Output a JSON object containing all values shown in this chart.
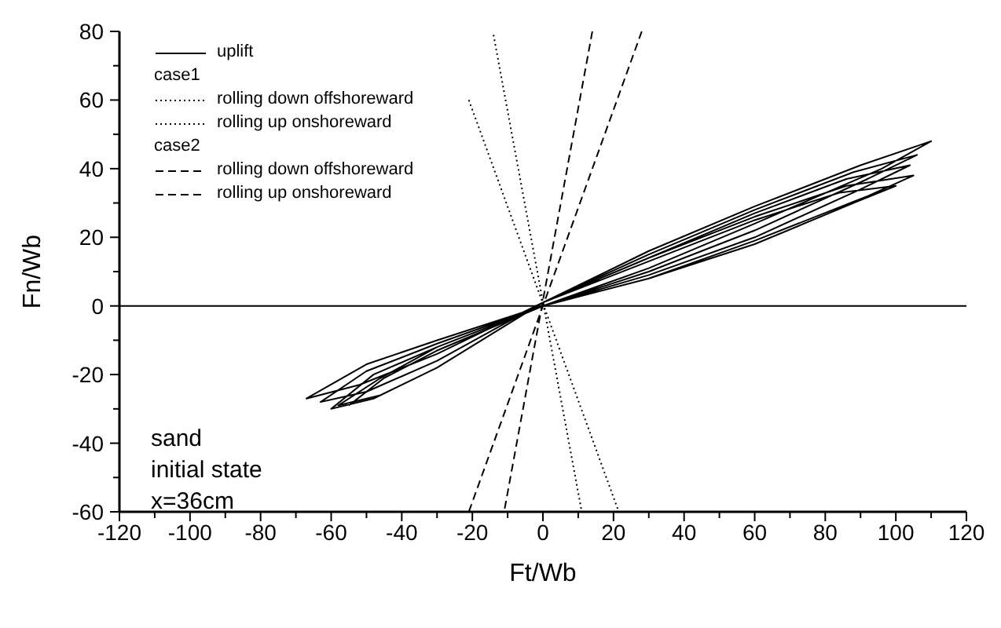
{
  "chart_data": {
    "type": "line",
    "xlabel": "Ft/Wb",
    "ylabel": "Fn/Wb",
    "xlim": [
      -120,
      120
    ],
    "ylim": [
      -60,
      80
    ],
    "xticks": [
      -120,
      {
        "value": -110,
        "label": null
      },
      -100,
      {
        "value": -90,
        "label": null
      },
      -80,
      {
        "value": -70,
        "label": null
      },
      -60,
      {
        "value": -50,
        "label": null
      },
      -40,
      {
        "value": -30,
        "label": null
      },
      -20,
      {
        "value": -10,
        "label": null
      },
      0,
      {
        "value": 10,
        "label": null
      },
      20,
      {
        "value": 30,
        "label": null
      },
      40,
      {
        "value": 50,
        "label": null
      },
      60,
      {
        "value": 70,
        "label": null
      },
      80,
      {
        "value": 90,
        "label": null
      },
      100,
      {
        "value": 110,
        "label": null
      },
      120
    ],
    "yticks": [
      -60,
      {
        "value": -50,
        "label": null
      },
      -40,
      {
        "value": -30,
        "label": null
      },
      -20,
      {
        "value": -10,
        "label": null
      },
      0,
      {
        "value": 10,
        "label": null
      },
      20,
      {
        "value": 30,
        "label": null
      },
      40,
      {
        "value": 50,
        "label": null
      },
      60,
      {
        "value": 70,
        "label": null
      },
      80
    ],
    "legend": "top left",
    "marker": "none",
    "ref_lines": [
      {
        "axis": "y",
        "value": 0,
        "label": null,
        "color": "#000000",
        "line_style": "solid"
      }
    ],
    "annotations": [
      "case1",
      "case2",
      "sand\ninitial state\nx=36cm"
    ],
    "series": [
      {
        "name": "uplift",
        "color": "#000000",
        "line_style": "solid",
        "x": [
          0,
          30,
          60,
          90,
          110,
          96,
          60,
          30,
          0,
          -30,
          -50,
          -67,
          -52,
          -30,
          0,
          30,
          60,
          88,
          106,
          92,
          60,
          30,
          0,
          -30,
          -50,
          -63,
          -50,
          -30,
          0,
          30,
          60,
          86,
          104,
          90,
          60,
          30,
          0,
          -30,
          -48,
          -60,
          -48,
          -30,
          0,
          30,
          60,
          86,
          105,
          92,
          60,
          30,
          0,
          -30,
          -46,
          -58,
          -46,
          -30,
          0,
          30,
          60,
          84,
          100,
          88,
          60,
          30,
          0,
          -30,
          -45,
          -55
        ],
        "values": [
          1,
          16,
          29,
          41,
          48,
          40,
          24,
          11,
          0,
          -10,
          -17,
          -27,
          -23,
          -14,
          1,
          15,
          28,
          39,
          44,
          37,
          22,
          10,
          0,
          -11,
          -19,
          -28,
          -25,
          -16,
          1,
          14,
          27,
          37,
          41,
          34,
          20,
          9,
          0,
          -12,
          -20,
          -30,
          -27,
          -18,
          1,
          14,
          26,
          35,
          38,
          32,
          19,
          8,
          0,
          -12,
          -21,
          -29,
          -26,
          -18,
          1,
          13,
          25,
          33,
          35,
          30,
          18,
          8,
          0,
          -13,
          -21,
          -29
        ]
      },
      {
        "name": "rolling down offshoreward",
        "color": "#000000",
        "line_style": "dotted",
        "x": [
          -21,
          21.5
        ],
        "values": [
          60,
          -60
        ]
      },
      {
        "name": "rolling up onshoreward",
        "color": "#000000",
        "line_style": "dotted",
        "x": [
          -14,
          11
        ],
        "values": [
          79,
          -60
        ]
      },
      {
        "name": "rolling down offshoreward",
        "color": "#000000",
        "line_style": "dashed",
        "x": [
          14,
          -11
        ],
        "values": [
          80,
          -60
        ]
      },
      {
        "name": "rolling up onshoreward",
        "color": "#000000",
        "line_style": "dashed",
        "x": [
          28,
          -21
        ],
        "values": [
          80,
          -60
        ]
      }
    ]
  }
}
